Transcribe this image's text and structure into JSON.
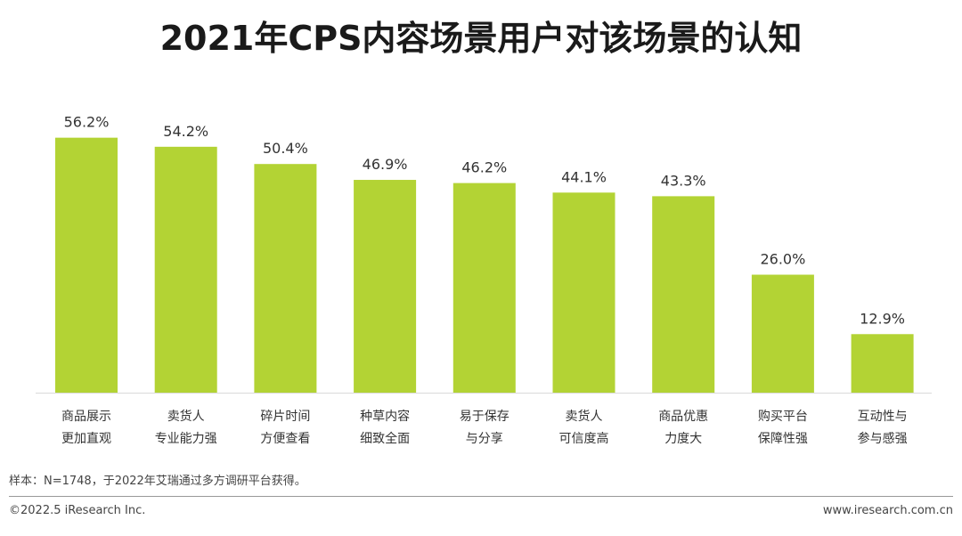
{
  "chart_data": {
    "type": "bar",
    "title": "2021年CPS内容场景用户对该场景的认知",
    "categories": [
      [
        "商品展示",
        "更加直观"
      ],
      [
        "卖货人",
        "专业能力强"
      ],
      [
        "碎片时间",
        "方便查看"
      ],
      [
        "种草内容",
        "细致全面"
      ],
      [
        "易于保存",
        "与分享"
      ],
      [
        "卖货人",
        "可信度高"
      ],
      [
        "商品优惠",
        "力度大"
      ],
      [
        "购买平台",
        "保障性强"
      ],
      [
        "互动性与",
        "参与感强"
      ]
    ],
    "values": [
      56.2,
      54.2,
      50.4,
      46.9,
      46.2,
      44.1,
      43.3,
      26.0,
      12.9
    ],
    "value_labels": [
      "56.2%",
      "54.2%",
      "50.4%",
      "46.9%",
      "46.2%",
      "44.1%",
      "43.3%",
      "26.0%",
      "12.9%"
    ],
    "ylim": [
      0,
      63
    ],
    "grid": false,
    "bar_color": "#b3d334"
  },
  "footer": {
    "note": "样本：N=1748，于2022年艾瑞通过多方调研平台获得。",
    "copyright": "©2022.5 iResearch Inc.",
    "site": "www.iresearch.com.cn"
  }
}
